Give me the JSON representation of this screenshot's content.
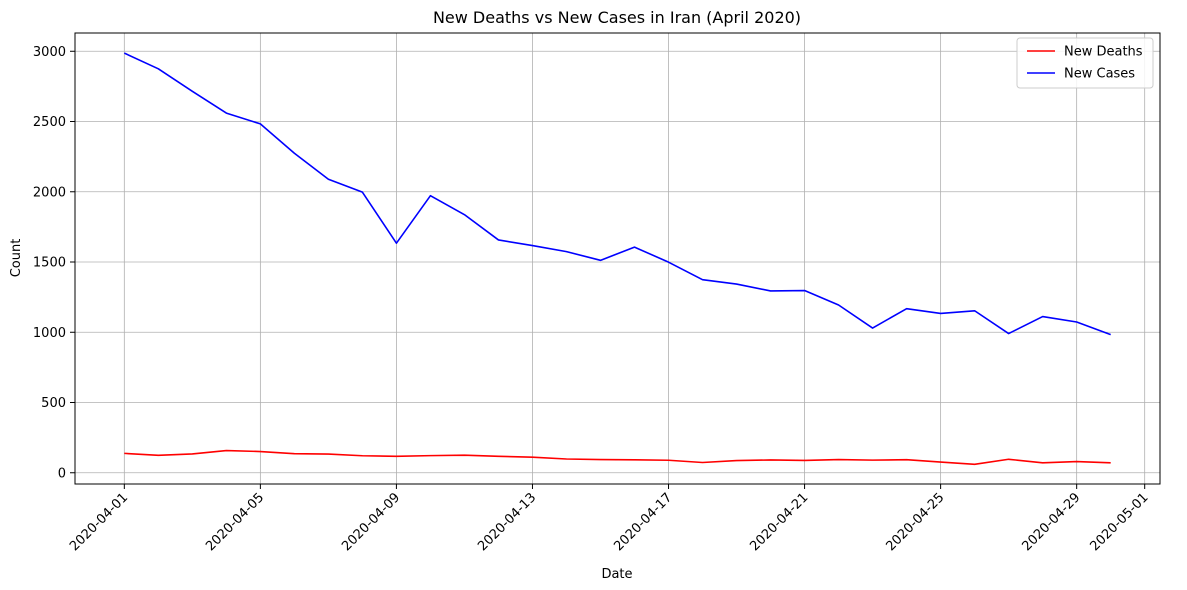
{
  "chart_data": {
    "type": "line",
    "title": "New Deaths vs New Cases in Iran (April 2020)",
    "xlabel": "Date",
    "ylabel": "Count",
    "ylim": [
      -80,
      3130
    ],
    "xlim": [
      "2020-03-30.55",
      "2020-05-01.45"
    ],
    "yticks": [
      0,
      500,
      1000,
      1500,
      2000,
      2500,
      3000
    ],
    "xticks": [
      "2020-04-01",
      "2020-04-05",
      "2020-04-09",
      "2020-04-13",
      "2020-04-17",
      "2020-04-21",
      "2020-04-25",
      "2020-04-29",
      "2020-05-01"
    ],
    "grid": true,
    "legend_position": "top-right",
    "x": [
      "2020-04-01",
      "2020-04-02",
      "2020-04-03",
      "2020-04-04",
      "2020-04-05",
      "2020-04-06",
      "2020-04-07",
      "2020-04-08",
      "2020-04-09",
      "2020-04-10",
      "2020-04-11",
      "2020-04-12",
      "2020-04-13",
      "2020-04-14",
      "2020-04-15",
      "2020-04-16",
      "2020-04-17",
      "2020-04-18",
      "2020-04-19",
      "2020-04-20",
      "2020-04-21",
      "2020-04-22",
      "2020-04-23",
      "2020-04-24",
      "2020-04-25",
      "2020-04-26",
      "2020-04-27",
      "2020-04-28",
      "2020-04-29",
      "2020-04-30"
    ],
    "series": [
      {
        "name": "New Deaths",
        "color": "#ff0000",
        "values": [
          138,
          124,
          134,
          158,
          151,
          136,
          133,
          121,
          117,
          122,
          125,
          117,
          111,
          98,
          94,
          92,
          89,
          73,
          87,
          91,
          88,
          94,
          90,
          93,
          76,
          60,
          96,
          71,
          80,
          71
        ]
      },
      {
        "name": "New Cases",
        "color": "#0000ff",
        "values": [
          2987,
          2875,
          2715,
          2560,
          2483,
          2274,
          2089,
          1997,
          1634,
          1972,
          1837,
          1657,
          1617,
          1574,
          1512,
          1606,
          1499,
          1374,
          1343,
          1294,
          1297,
          1194,
          1030,
          1168,
          1134,
          1153,
          991,
          1112,
          1073,
          983
        ]
      }
    ]
  }
}
